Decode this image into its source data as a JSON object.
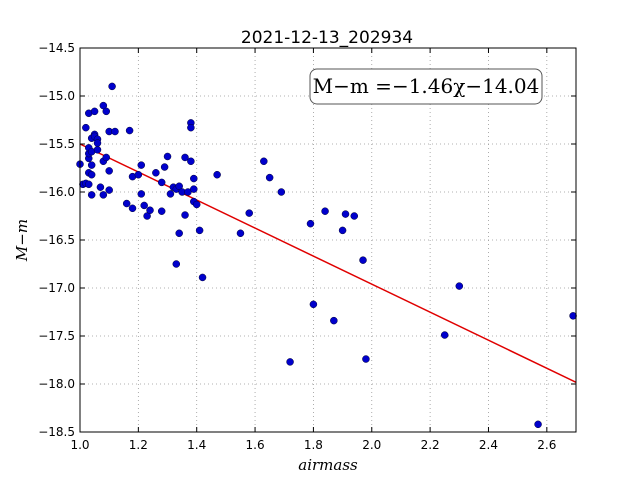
{
  "chart_data": {
    "type": "scatter",
    "title": "2021-12-13_202934",
    "xlabel": "airmass",
    "ylabel": "M−m",
    "xlim": [
      1.0,
      2.7
    ],
    "ylim": [
      -18.5,
      -14.5
    ],
    "x_ticks": [
      "1.0",
      "1.2",
      "1.4",
      "1.6",
      "1.8",
      "2.0",
      "2.2",
      "2.4",
      "2.6"
    ],
    "y_ticks": [
      "−14.5",
      "−15.0",
      "−15.5",
      "−16.0",
      "−16.5",
      "−17.0",
      "−17.5",
      "−18.0",
      "−18.5"
    ],
    "grid": true,
    "annotation": "M−m =−1.46χ−14.04",
    "colors": {
      "points": "#0000cc",
      "fit_line": "#e00000",
      "grid": "#999999"
    },
    "fit_line": {
      "slope": -1.46,
      "intercept": -14.04,
      "x_range": [
        1.0,
        2.7
      ]
    },
    "points": [
      [
        1.0,
        -15.71
      ],
      [
        1.01,
        -15.92
      ],
      [
        1.02,
        -15.33
      ],
      [
        1.02,
        -15.91
      ],
      [
        1.03,
        -15.8
      ],
      [
        1.03,
        -15.65
      ],
      [
        1.03,
        -15.6
      ],
      [
        1.03,
        -15.54
      ],
      [
        1.03,
        -15.18
      ],
      [
        1.03,
        -15.92
      ],
      [
        1.04,
        -15.72
      ],
      [
        1.04,
        -15.82
      ],
      [
        1.04,
        -15.44
      ],
      [
        1.04,
        -15.58
      ],
      [
        1.04,
        -16.03
      ],
      [
        1.05,
        -15.4
      ],
      [
        1.05,
        -15.16
      ],
      [
        1.05,
        -15.42
      ],
      [
        1.06,
        -15.45
      ],
      [
        1.06,
        -15.56
      ],
      [
        1.06,
        -15.49
      ],
      [
        1.07,
        -15.95
      ],
      [
        1.08,
        -16.03
      ],
      [
        1.08,
        -15.1
      ],
      [
        1.08,
        -15.68
      ],
      [
        1.09,
        -15.16
      ],
      [
        1.09,
        -15.64
      ],
      [
        1.1,
        -15.78
      ],
      [
        1.1,
        -15.98
      ],
      [
        1.1,
        -15.37
      ],
      [
        1.11,
        -14.9
      ],
      [
        1.12,
        -15.37
      ],
      [
        1.16,
        -16.12
      ],
      [
        1.17,
        -15.36
      ],
      [
        1.18,
        -16.17
      ],
      [
        1.18,
        -15.84
      ],
      [
        1.2,
        -15.82
      ],
      [
        1.21,
        -15.72
      ],
      [
        1.21,
        -16.02
      ],
      [
        1.22,
        -16.14
      ],
      [
        1.23,
        -16.25
      ],
      [
        1.24,
        -16.19
      ],
      [
        1.26,
        -15.8
      ],
      [
        1.28,
        -15.9
      ],
      [
        1.28,
        -16.2
      ],
      [
        1.29,
        -15.74
      ],
      [
        1.3,
        -15.63
      ],
      [
        1.31,
        -16.02
      ],
      [
        1.32,
        -15.95
      ],
      [
        1.33,
        -15.97
      ],
      [
        1.33,
        -16.75
      ],
      [
        1.34,
        -15.94
      ],
      [
        1.34,
        -16.43
      ],
      [
        1.35,
        -16.0
      ],
      [
        1.36,
        -15.64
      ],
      [
        1.36,
        -16.24
      ],
      [
        1.37,
        -16.0
      ],
      [
        1.38,
        -15.68
      ],
      [
        1.38,
        -15.28
      ],
      [
        1.38,
        -15.33
      ],
      [
        1.39,
        -15.97
      ],
      [
        1.39,
        -16.1
      ],
      [
        1.39,
        -15.86
      ],
      [
        1.4,
        -16.13
      ],
      [
        1.41,
        -16.4
      ],
      [
        1.42,
        -16.89
      ],
      [
        1.47,
        -15.82
      ],
      [
        1.55,
        -16.43
      ],
      [
        1.58,
        -16.22
      ],
      [
        1.63,
        -15.68
      ],
      [
        1.65,
        -15.85
      ],
      [
        1.69,
        -16.0
      ],
      [
        1.72,
        -17.77
      ],
      [
        1.79,
        -16.33
      ],
      [
        1.8,
        -17.17
      ],
      [
        1.84,
        -16.2
      ],
      [
        1.87,
        -17.34
      ],
      [
        1.9,
        -16.4
      ],
      [
        1.91,
        -16.23
      ],
      [
        1.94,
        -16.25
      ],
      [
        1.97,
        -16.71
      ],
      [
        1.98,
        -17.74
      ],
      [
        2.25,
        -17.49
      ],
      [
        2.3,
        -16.98
      ],
      [
        2.57,
        -18.42
      ],
      [
        2.69,
        -17.29
      ]
    ]
  }
}
